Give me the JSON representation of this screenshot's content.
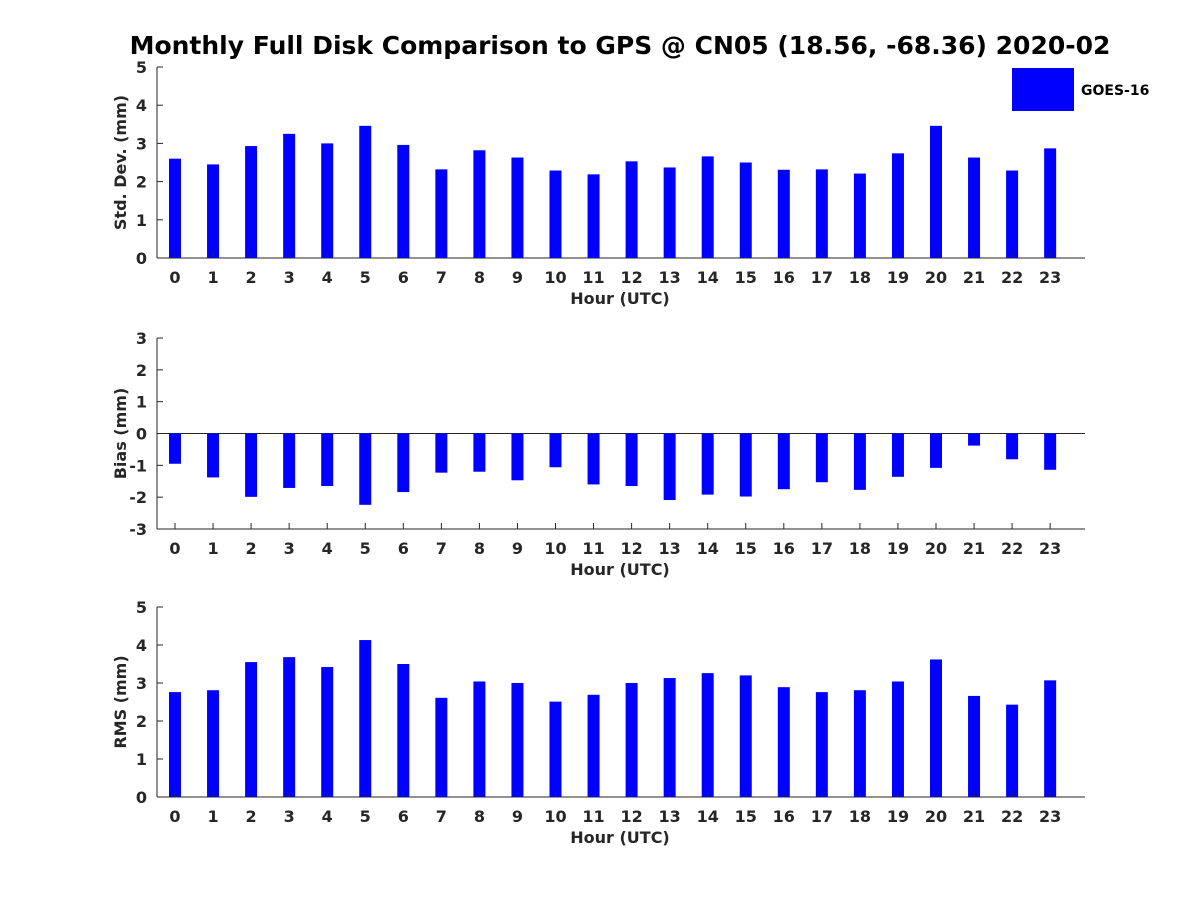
{
  "figure": {
    "title": "Monthly Full Disk Comparison to GPS @ CN05 (18.56, -68.36) 2020-02",
    "bar_color": "#0000FF",
    "legend": [
      "GOES-16"
    ]
  },
  "chart_data": [
    {
      "type": "bar",
      "xlabel": "Hour (UTC)",
      "ylabel": "Std. Dev. (mm)",
      "ylim": [
        0,
        5
      ],
      "yticks": [
        0,
        1,
        2,
        3,
        4,
        5
      ],
      "categories": [
        "0",
        "1",
        "2",
        "3",
        "4",
        "5",
        "6",
        "7",
        "8",
        "9",
        "10",
        "11",
        "12",
        "13",
        "14",
        "15",
        "16",
        "17",
        "18",
        "19",
        "20",
        "21",
        "22",
        "23"
      ],
      "series": [
        {
          "name": "GOES-16",
          "values": [
            2.6,
            2.45,
            2.93,
            3.25,
            3.0,
            3.46,
            2.96,
            2.32,
            2.82,
            2.63,
            2.29,
            2.19,
            2.53,
            2.37,
            2.66,
            2.5,
            2.31,
            2.32,
            2.21,
            2.74,
            3.46,
            2.63,
            2.29,
            2.87
          ]
        }
      ],
      "grid": false
    },
    {
      "type": "bar",
      "xlabel": "Hour (UTC)",
      "ylabel": "Bias (mm)",
      "ylim": [
        -3,
        3
      ],
      "yticks": [
        -3,
        -2,
        -1,
        0,
        1,
        2,
        3
      ],
      "categories": [
        "0",
        "1",
        "2",
        "3",
        "4",
        "5",
        "6",
        "7",
        "8",
        "9",
        "10",
        "11",
        "12",
        "13",
        "14",
        "15",
        "16",
        "17",
        "18",
        "19",
        "20",
        "21",
        "22",
        "23"
      ],
      "series": [
        {
          "name": "GOES-16",
          "values": [
            -0.95,
            -1.38,
            -1.99,
            -1.71,
            -1.65,
            -2.24,
            -1.84,
            -1.23,
            -1.2,
            -1.47,
            -1.06,
            -1.6,
            -1.65,
            -2.09,
            -1.92,
            -1.98,
            -1.75,
            -1.53,
            -1.77,
            -1.36,
            -1.08,
            -0.38,
            -0.81,
            -1.14
          ]
        }
      ],
      "zero_line": true,
      "grid": false
    },
    {
      "type": "bar",
      "xlabel": "Hour (UTC)",
      "ylabel": "RMS (mm)",
      "ylim": [
        0,
        5
      ],
      "yticks": [
        0,
        1,
        2,
        3,
        4,
        5
      ],
      "categories": [
        "0",
        "1",
        "2",
        "3",
        "4",
        "5",
        "6",
        "7",
        "8",
        "9",
        "10",
        "11",
        "12",
        "13",
        "14",
        "15",
        "16",
        "17",
        "18",
        "19",
        "20",
        "21",
        "22",
        "23"
      ],
      "series": [
        {
          "name": "GOES-16",
          "values": [
            2.76,
            2.81,
            3.55,
            3.68,
            3.42,
            4.13,
            3.5,
            2.61,
            3.04,
            3.0,
            2.51,
            2.69,
            3.0,
            3.13,
            3.26,
            3.2,
            2.89,
            2.76,
            2.81,
            3.04,
            3.62,
            2.66,
            2.43,
            3.07
          ]
        }
      ],
      "grid": false
    }
  ]
}
